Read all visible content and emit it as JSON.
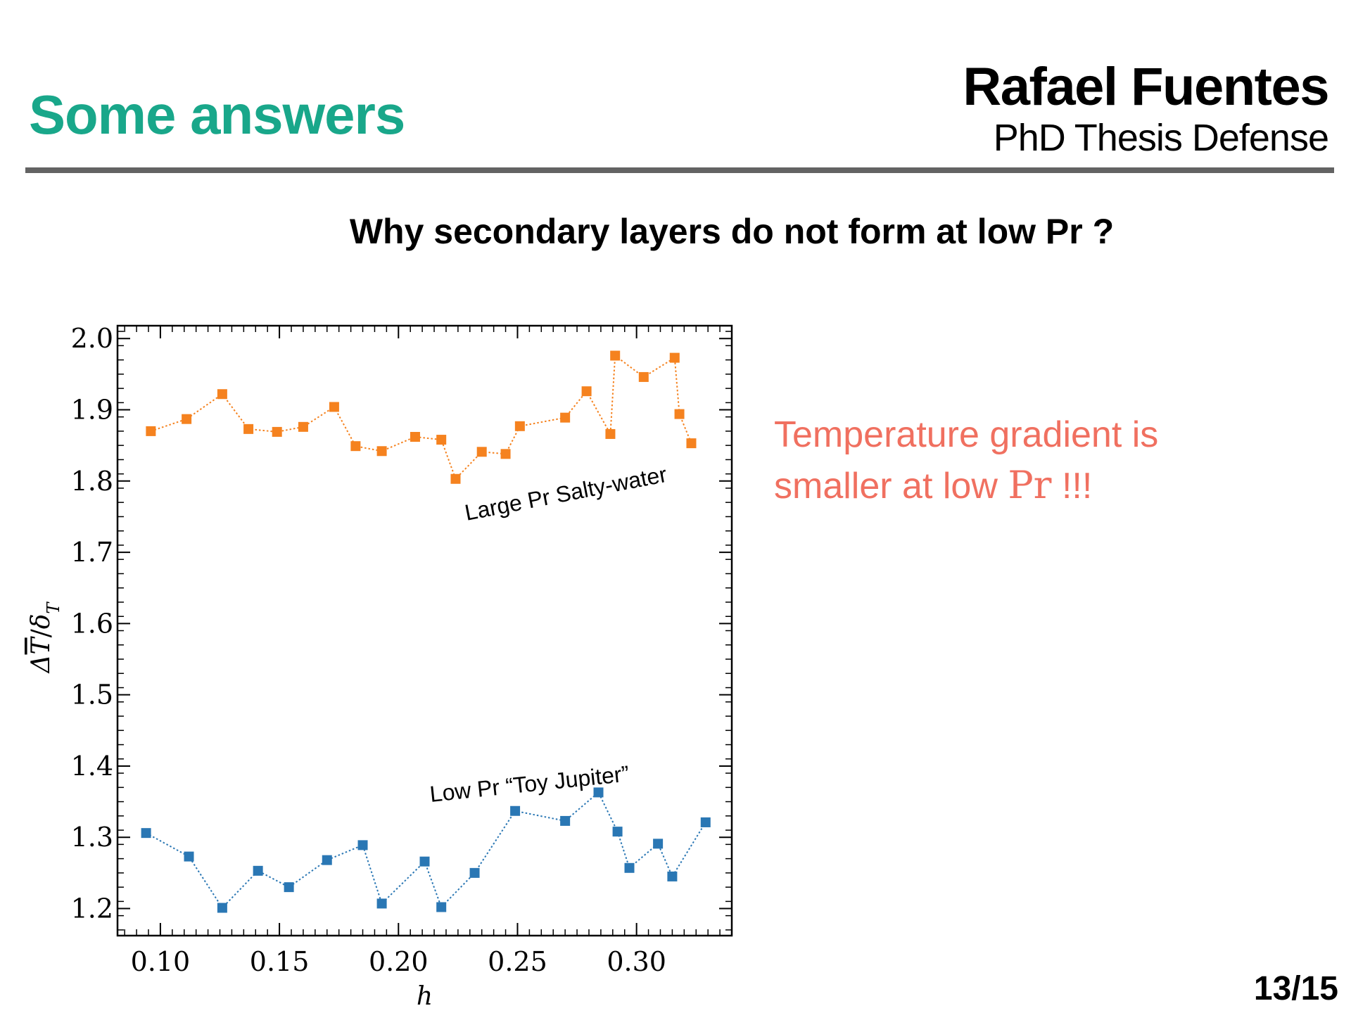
{
  "header": {
    "title": "Some answers",
    "author_name": "Rafael Fuentes",
    "author_subtitle": "PhD Thesis Defense"
  },
  "question": "Why secondary layers do not form at low Pr ?",
  "answer": {
    "line1": "Temperature gradient is",
    "line2_prefix": "smaller at low",
    "line2_pr": "Pr",
    "line2_suffix": "!!!"
  },
  "page_number": "13/15",
  "colors": {
    "title": "#19a78a",
    "answer": "#f07060",
    "large_pr": "#f5821f",
    "low_pr": "#2a77b4"
  },
  "chart_data": {
    "type": "scatter",
    "xlabel": "h",
    "ylabel": "ΔT̄/δT",
    "xlim": [
      0.082,
      0.34
    ],
    "ylim": [
      1.162,
      2.018
    ],
    "xticks": [
      {
        "value": 0.1,
        "label": "0.10"
      },
      {
        "value": 0.15,
        "label": "0.15"
      },
      {
        "value": 0.2,
        "label": "0.20"
      },
      {
        "value": 0.25,
        "label": "0.25"
      },
      {
        "value": 0.3,
        "label": "0.30"
      }
    ],
    "yticks": [
      {
        "value": 1.2,
        "label": "1.2"
      },
      {
        "value": 1.3,
        "label": "1.3"
      },
      {
        "value": 1.4,
        "label": "1.4"
      },
      {
        "value": 1.5,
        "label": "1.5"
      },
      {
        "value": 1.6,
        "label": "1.6"
      },
      {
        "value": 1.7,
        "label": "1.7"
      },
      {
        "value": 1.8,
        "label": "1.8"
      },
      {
        "value": 1.9,
        "label": "1.9"
      },
      {
        "value": 2.0,
        "label": "2.0"
      }
    ],
    "marker": "square",
    "line_style": "dotted",
    "grid": false,
    "series": [
      {
        "name": "Large Pr Salty-water",
        "color": "#f5821f",
        "x": [
          0.096,
          0.111,
          0.126,
          0.137,
          0.149,
          0.16,
          0.173,
          0.182,
          0.193,
          0.207,
          0.218,
          0.224,
          0.235,
          0.245,
          0.251,
          0.27,
          0.279,
          0.289,
          0.291,
          0.303,
          0.316,
          0.318,
          0.323
        ],
        "y": [
          1.87,
          1.887,
          1.922,
          1.873,
          1.869,
          1.876,
          1.904,
          1.849,
          1.842,
          1.862,
          1.858,
          1.803,
          1.841,
          1.838,
          1.877,
          1.889,
          1.926,
          1.866,
          1.976,
          1.946,
          1.973,
          1.894,
          1.853
        ]
      },
      {
        "name": "Low Pr “Toy Jupiter”",
        "color": "#2a77b4",
        "x": [
          0.094,
          0.112,
          0.126,
          0.141,
          0.154,
          0.17,
          0.185,
          0.193,
          0.211,
          0.218,
          0.232,
          0.249,
          0.27,
          0.284,
          0.292,
          0.297,
          0.309,
          0.315,
          0.329
        ],
        "y": [
          1.306,
          1.273,
          1.201,
          1.253,
          1.23,
          1.268,
          1.289,
          1.207,
          1.266,
          1.202,
          1.25,
          1.337,
          1.323,
          1.363,
          1.308,
          1.257,
          1.291,
          1.245,
          1.321
        ]
      }
    ]
  }
}
